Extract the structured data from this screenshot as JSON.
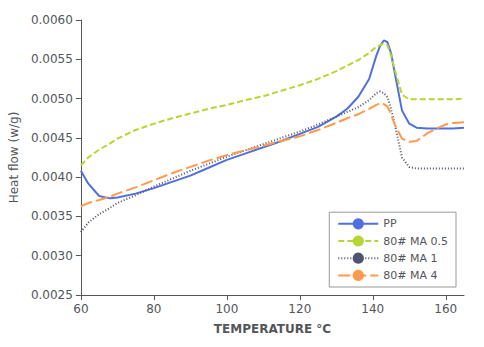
{
  "chart_data": {
    "type": "line",
    "xlabel": "TEMPERATURE °C",
    "ylabel": "Heat flow (w/g)",
    "x": [
      60,
      62,
      65,
      68,
      70,
      75,
      80,
      85,
      90,
      95,
      100,
      105,
      110,
      115,
      120,
      125,
      130,
      133,
      136,
      139,
      141,
      142,
      143,
      144,
      145,
      146,
      148,
      150,
      152,
      155,
      158,
      160,
      162,
      165
    ],
    "series": [
      {
        "name": "PP",
        "line_style": "solid",
        "values": [
          0.00408,
          0.00392,
          0.00376,
          0.00373,
          0.00374,
          0.00379,
          0.00386,
          0.00394,
          0.00402,
          0.00412,
          0.00422,
          0.0043,
          0.00438,
          0.00446,
          0.00455,
          0.00464,
          0.00477,
          0.00487,
          0.00502,
          0.00525,
          0.00555,
          0.00567,
          0.00574,
          0.00572,
          0.00558,
          0.00533,
          0.00485,
          0.00468,
          0.00463,
          0.00462,
          0.00462,
          0.00462,
          0.00462,
          0.00463
        ]
      },
      {
        "name": "80# MA 0.5",
        "line_style": "dashed",
        "values": [
          0.00415,
          0.00425,
          0.00435,
          0.00443,
          0.00449,
          0.0046,
          0.00468,
          0.00475,
          0.00481,
          0.00487,
          0.00492,
          0.00498,
          0.00503,
          0.0051,
          0.00517,
          0.00525,
          0.00535,
          0.00542,
          0.00549,
          0.00558,
          0.00566,
          0.00568,
          0.0057,
          0.00568,
          0.00555,
          0.00537,
          0.00505,
          0.00499,
          0.00499,
          0.00499,
          0.00499,
          0.00499,
          0.00499,
          0.005
        ]
      },
      {
        "name": "80# MA 1",
        "line_style": "dotted",
        "values": [
          0.0033,
          0.00342,
          0.00353,
          0.00361,
          0.00367,
          0.00377,
          0.00388,
          0.00398,
          0.00408,
          0.00417,
          0.00426,
          0.00434,
          0.00442,
          0.0045,
          0.00458,
          0.00467,
          0.00477,
          0.00483,
          0.00489,
          0.00498,
          0.00507,
          0.00509,
          0.00507,
          0.00502,
          0.00487,
          0.00468,
          0.00425,
          0.00413,
          0.00411,
          0.00411,
          0.00411,
          0.00411,
          0.00411,
          0.00411
        ]
      },
      {
        "name": "80# MA 4",
        "line_style": "longdash",
        "values": [
          0.00363,
          0.00367,
          0.00371,
          0.00375,
          0.00379,
          0.00387,
          0.00396,
          0.00405,
          0.00413,
          0.00421,
          0.00428,
          0.00434,
          0.0044,
          0.00446,
          0.00452,
          0.0046,
          0.00469,
          0.00475,
          0.0048,
          0.00487,
          0.00492,
          0.00494,
          0.00493,
          0.0049,
          0.0048,
          0.00467,
          0.00449,
          0.00445,
          0.00446,
          0.00456,
          0.00463,
          0.00467,
          0.00469,
          0.0047
        ]
      }
    ],
    "xlim": [
      60,
      165
    ],
    "ylim": [
      0.0025,
      0.006
    ],
    "xticks": [
      60,
      80,
      100,
      120,
      140,
      160
    ],
    "yticks": [
      0.0025,
      {
        "value": 0.003,
        "label": "0.0030"
      },
      0.0035,
      {
        "value": 0.004,
        "label": "0.0040"
      },
      0.0045,
      {
        "value": 0.005,
        "label": "0.0050"
      },
      0.0055,
      {
        "value": 0.006,
        "label": "0.0060"
      }
    ],
    "grid": false,
    "legend": "lower right"
  }
}
